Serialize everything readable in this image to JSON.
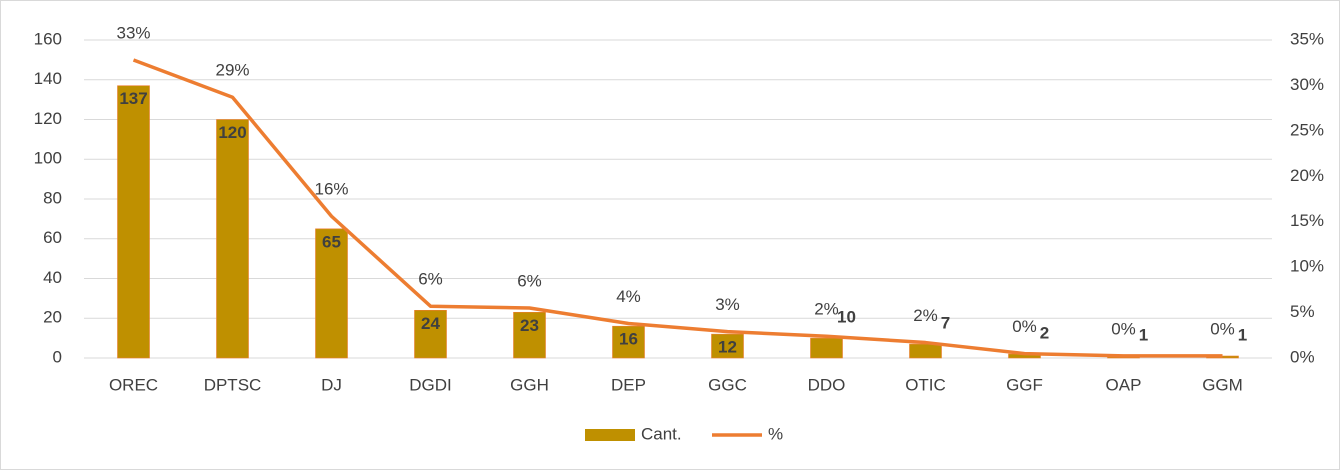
{
  "chart_data": {
    "type": "bar",
    "categories": [
      "OREC",
      "DPTSC",
      "DJ",
      "DGDI",
      "GGH",
      "DEP",
      "GGC",
      "DDO",
      "OTIC",
      "GGF",
      "OAP",
      "GGM"
    ],
    "series": [
      {
        "name": "Cant.",
        "type": "bar",
        "color": "#bf9000",
        "values": [
          137,
          120,
          65,
          24,
          23,
          16,
          12,
          10,
          7,
          2,
          1,
          1
        ]
      },
      {
        "name": "%",
        "type": "line",
        "axis": "y2",
        "color": "#ed7d31",
        "values": [
          32.8,
          28.7,
          15.6,
          5.7,
          5.5,
          3.8,
          2.9,
          2.4,
          1.7,
          0.48,
          0.24,
          0.24
        ],
        "value_labels": [
          "33%",
          "29%",
          "16%",
          "6%",
          "6%",
          "4%",
          "3%",
          "2%",
          "2%",
          "0%",
          "0%",
          "0%"
        ]
      }
    ],
    "ylim": [
      0,
      160
    ],
    "yticks": [
      0,
      20,
      40,
      60,
      80,
      100,
      120,
      140,
      160
    ],
    "y2lim": [
      0,
      35
    ],
    "y2ticks": [
      {
        "value": 0,
        "label": "0%"
      },
      {
        "value": 5,
        "label": "5%"
      },
      {
        "value": 10,
        "label": "10%"
      },
      {
        "value": 15,
        "label": "15%"
      },
      {
        "value": 20,
        "label": "20%"
      },
      {
        "value": 25,
        "label": "25%"
      },
      {
        "value": 30,
        "label": "30%"
      },
      {
        "value": 35,
        "label": "35%"
      }
    ],
    "grid": true,
    "legend": "bottom"
  }
}
